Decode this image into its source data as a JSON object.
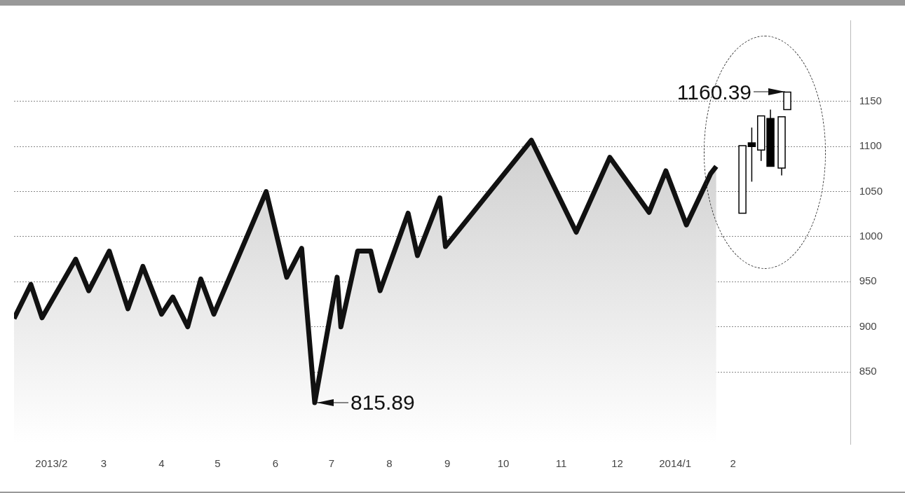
{
  "chart_data": {
    "type": "area",
    "grid": "y",
    "legend": false,
    "marker": "none",
    "xlim": [
      "2013-01-12",
      "2014-04-05"
    ],
    "xticks": [
      {
        "value": "2013-02",
        "label": "2013/2"
      },
      {
        "value": "2013-03",
        "label": "3"
      },
      {
        "value": "2013-04",
        "label": "4"
      },
      {
        "value": "2013-05",
        "label": "5"
      },
      {
        "value": "2013-06",
        "label": "6"
      },
      {
        "value": "2013-07",
        "label": "7"
      },
      {
        "value": "2013-08",
        "label": "8"
      },
      {
        "value": "2013-09",
        "label": "9"
      },
      {
        "value": "2013-10",
        "label": "10"
      },
      {
        "value": "2013-11",
        "label": "11"
      },
      {
        "value": "2013-12",
        "label": "12"
      },
      {
        "value": "2014-01",
        "label": "2014/1"
      },
      {
        "value": "2014-02",
        "label": "2"
      }
    ],
    "ylim": [
      770,
      1240
    ],
    "yticks": [
      850,
      900,
      950,
      1000,
      1050,
      1100,
      1150
    ],
    "series": [
      {
        "type": "area",
        "color": "#111111",
        "x": [
          "2013-01-12",
          "2013-01-21",
          "2013-01-27",
          "2013-02-14",
          "2013-02-21",
          "2013-03-04",
          "2013-03-14",
          "2013-03-22",
          "2013-04-01",
          "2013-04-07",
          "2013-04-15",
          "2013-04-22",
          "2013-04-29",
          "2013-05-27",
          "2013-06-07",
          "2013-06-15",
          "2013-06-22",
          "2013-07-04",
          "2013-07-06",
          "2013-07-15",
          "2013-07-22",
          "2013-07-27",
          "2013-08-11",
          "2013-08-16",
          "2013-08-28",
          "2013-08-31",
          "2013-10-16",
          "2013-11-09",
          "2013-11-27",
          "2013-12-18",
          "2013-12-27",
          "2014-01-07",
          "2014-01-20",
          "2014-01-23"
        ],
        "values": [
          909,
          947,
          910,
          975,
          940,
          984,
          920,
          967,
          914,
          933,
          900,
          953,
          914,
          1050,
          955,
          987,
          815.89,
          955,
          900,
          984,
          984,
          940,
          1026,
          979,
          1043,
          989,
          1107,
          1005,
          1088,
          1027,
          1073,
          1013,
          1070,
          1078
        ]
      },
      {
        "type": "candlestick",
        "colors": [
          "#ffffff",
          "#000000",
          "#ffffff",
          "#000000",
          "#ffffff",
          "#ffffff"
        ],
        "x": [
          "2014-02-06",
          "2014-02-11",
          "2014-02-16",
          "2014-02-21",
          "2014-02-27",
          "2014-03-02"
        ],
        "ohlc": [
          [
            1026,
            1101,
            1026,
            1101
          ],
          [
            1104,
            1121,
            1061,
            1100
          ],
          [
            1096,
            1134,
            1084,
            1134
          ],
          [
            1131,
            1141,
            1078,
            1078
          ],
          [
            1076,
            1133,
            1068,
            1133
          ],
          [
            1141,
            1160.39,
            1141,
            1160.39
          ]
        ]
      }
    ],
    "annotations": [
      {
        "text": "815.89",
        "x": "2013-06-22",
        "y": 815.89
      },
      {
        "text": "1160.39",
        "x": "2014-03-02",
        "y": 1160.39
      }
    ]
  }
}
